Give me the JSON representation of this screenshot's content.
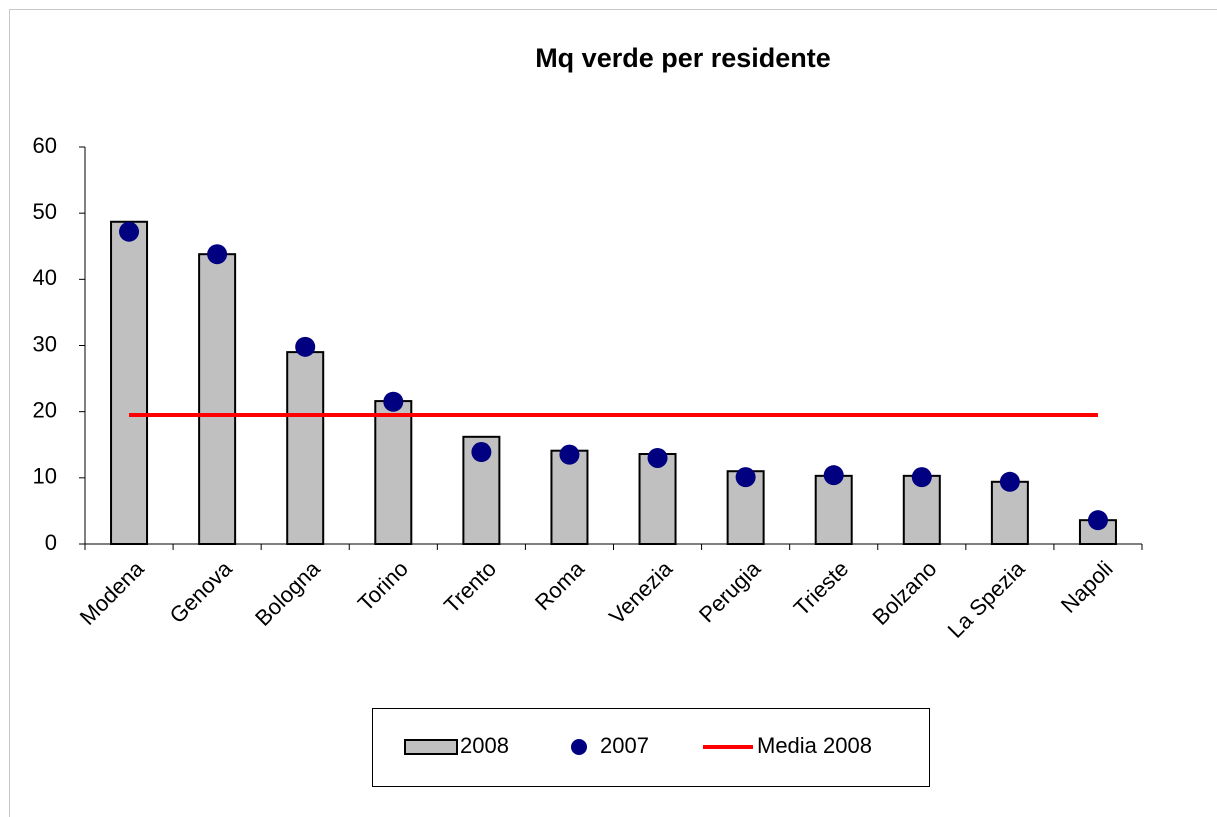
{
  "chart_data": {
    "type": "bar",
    "title": "Mq verde per residente",
    "categories": [
      "Modena",
      "Genova",
      "Bologna",
      "Torino",
      "Trento",
      "Roma",
      "Venezia",
      "Perugia",
      "Trieste",
      "Bolzano",
      "La Spezia",
      "Napoli"
    ],
    "series": [
      {
        "name": "2008",
        "type": "bar",
        "color": "#c0c0c0",
        "values": [
          48.7,
          43.8,
          29.0,
          21.6,
          16.2,
          14.1,
          13.6,
          11.0,
          10.3,
          10.3,
          9.4,
          3.6
        ]
      },
      {
        "name": "2007",
        "type": "scatter",
        "color": "#000080",
        "values": [
          47.2,
          43.8,
          29.8,
          21.5,
          13.9,
          13.5,
          13.0,
          10.1,
          10.4,
          10.1,
          9.4,
          3.6
        ]
      },
      {
        "name": "Media 2008",
        "type": "line",
        "color": "#ff0000",
        "values": [
          19.5,
          19.5,
          19.5,
          19.5,
          19.5,
          19.5,
          19.5,
          19.5,
          19.5,
          19.5,
          19.5,
          19.5
        ]
      }
    ],
    "ylim": [
      0,
      60
    ],
    "yticks": [
      0,
      10,
      20,
      30,
      40,
      50,
      60
    ],
    "grid": false,
    "legend": "bottom"
  }
}
